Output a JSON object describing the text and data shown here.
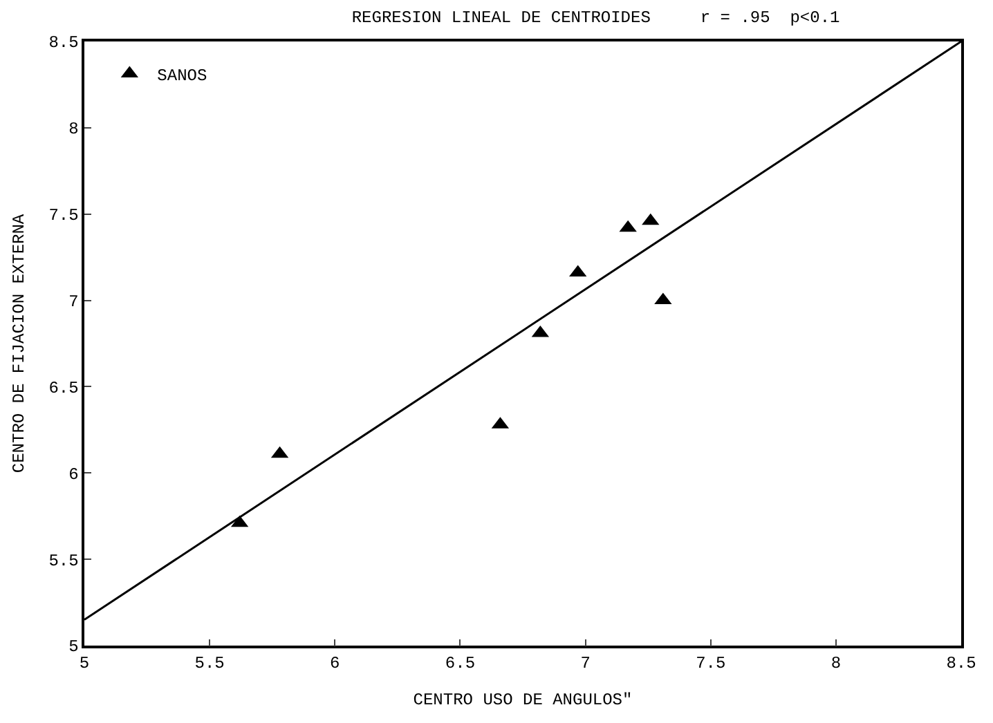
{
  "chart_data": {
    "type": "scatter",
    "title": "REGRESION LINEAL DE CENTROIDES     r = .95  p<0.1",
    "xlabel": "CENTRO USO DE ANGULOS\"",
    "ylabel": "CENTRO DE FIJACION EXTERNA",
    "xlim": [
      5,
      8.5
    ],
    "ylim": [
      5,
      8.5
    ],
    "xticks": [
      5,
      5.5,
      6,
      6.5,
      7,
      7.5,
      8,
      8.5
    ],
    "yticks": [
      5,
      5.5,
      6,
      6.5,
      7,
      7.5,
      8,
      8.5
    ],
    "legend": "top left",
    "marker": "triangle",
    "series": [
      {
        "name": "SANOS",
        "color": "#000000",
        "x": [
          5.62,
          5.78,
          6.66,
          6.82,
          6.97,
          7.17,
          7.26,
          7.31
        ],
        "values": [
          5.71,
          6.11,
          6.28,
          6.81,
          7.16,
          7.42,
          7.46,
          7.0
        ]
      },
      {
        "type": "line",
        "color": "#000000",
        "line_style": "solid",
        "marker": "none",
        "x": [
          5,
          8.5
        ],
        "values": [
          5.15,
          8.5
        ]
      }
    ]
  }
}
